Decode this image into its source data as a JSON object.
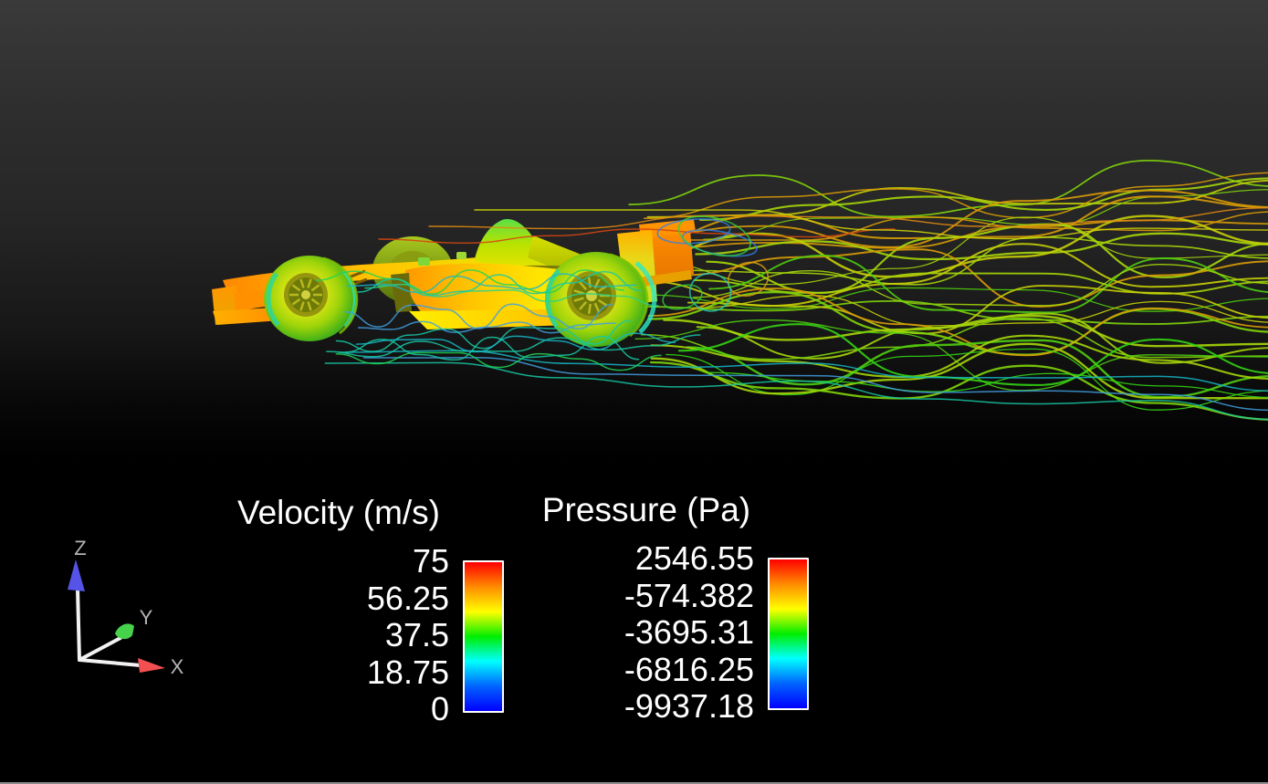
{
  "scene": {
    "description": "CFD streamline visualization of a Formula 1 race car",
    "background_top": "#3a3a3a",
    "background_bottom": "#000000",
    "bottom_edge_color": "#8c8c8c"
  },
  "legends": [
    {
      "id": "velocity",
      "title": "Velocity (m/s)",
      "ticks": [
        "75",
        "56.25",
        "37.5",
        "18.75",
        "0"
      ],
      "colorbar_stops": [
        "#ff0000",
        "#ff8c00",
        "#ffff00",
        "#00ee00",
        "#00ffff",
        "#0064ff",
        "#0000ff"
      ],
      "border_color": "#ffffff"
    },
    {
      "id": "pressure",
      "title": "Pressure (Pa)",
      "ticks": [
        "2546.55",
        "-574.382",
        "-3695.31",
        "-6816.25",
        "-9937.18"
      ],
      "colorbar_stops": [
        "#ff0000",
        "#ff8c00",
        "#ffff00",
        "#00ee00",
        "#00ffff",
        "#0064ff",
        "#0000ff"
      ],
      "border_color": "#ffffff"
    }
  ],
  "axis_widget": {
    "labels": {
      "x": "X",
      "y": "Y",
      "z": "Z"
    },
    "x_color": "#f25050",
    "y_color": "#46d24b",
    "z_color": "#5553e8",
    "shaft_color": "#f2f2f2",
    "label_color": "#b5b5b5"
  },
  "model": {
    "name": "formula-1-car",
    "body_colors": [
      "#ff8800",
      "#ffd400",
      "#f0e400",
      "#7ed40a"
    ]
  },
  "flow": {
    "wake_palette": [
      "#33d412",
      "#4fcf0e",
      "#7fd40a",
      "#a6d609",
      "#c6cf06",
      "#d89b05"
    ],
    "near_palette": [
      "#17c9a4",
      "#27d488",
      "#15b8c9",
      "#3f9fe0",
      "#20d455"
    ],
    "accent_palette": [
      "#d64712",
      "#e08a12",
      "#cfd409"
    ],
    "swirl_palette": [
      "#1fd0c0",
      "#2f7fe8",
      "#e0a010",
      "#30d040"
    ]
  }
}
